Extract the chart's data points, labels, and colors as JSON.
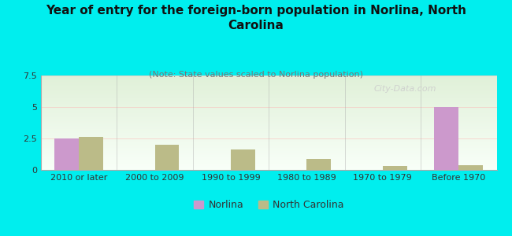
{
  "title": "Year of entry for the foreign-born population in Norlina, North\nCarolina",
  "subtitle": "(Note: State values scaled to Norlina population)",
  "categories": [
    "2010 or later",
    "2000 to 2009",
    "1990 to 1999",
    "1980 to 1989",
    "1970 to 1979",
    "Before 1970"
  ],
  "norlina_values": [
    2.5,
    0,
    0,
    0,
    0,
    5.0
  ],
  "nc_values": [
    2.6,
    2.0,
    1.6,
    0.9,
    0.3,
    0.4
  ],
  "norlina_color": "#cc99cc",
  "nc_color": "#bbbb88",
  "background_color": "#00eeee",
  "grad_top": "#e0f0d8",
  "grad_bottom": "#f8fff8",
  "ylim": [
    0,
    7.5
  ],
  "yticks": [
    0,
    2.5,
    5,
    7.5
  ],
  "bar_width": 0.32,
  "watermark": "City-Data.com",
  "legend_norlina": "Norlina",
  "legend_nc": "North Carolina",
  "title_fontsize": 11,
  "subtitle_fontsize": 8,
  "tick_fontsize": 8
}
